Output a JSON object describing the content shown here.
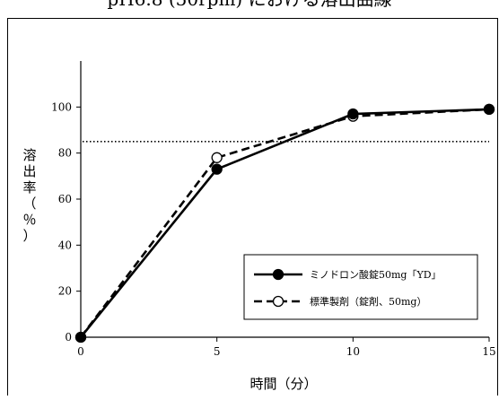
{
  "caption_cut": "pH6.8 (50rpm) における溶出曲線",
  "chart_data": {
    "type": "line",
    "xlabel": "時間（分）",
    "ylabel": "溶出率（％）",
    "x": [
      0,
      5,
      10,
      15
    ],
    "xlim": [
      0,
      15
    ],
    "ylim": [
      0,
      120
    ],
    "xticks": [
      0,
      5,
      10,
      15
    ],
    "yticks": [
      0,
      20,
      40,
      60,
      80,
      100
    ],
    "reference_line": {
      "y": 85,
      "style": "dotted"
    },
    "legend_position": "bottom-right",
    "grid": false,
    "series": [
      {
        "name": "ミノドロン酸錠50mg「YD」",
        "values": [
          0,
          73,
          97,
          99
        ],
        "line_style": "solid",
        "marker": "filled-circle",
        "color": "#000000"
      },
      {
        "name": "標準製剤（錠剤、50mg）",
        "values": [
          0,
          78,
          96,
          99
        ],
        "line_style": "dashed",
        "marker": "open-circle",
        "color": "#000000"
      }
    ]
  }
}
